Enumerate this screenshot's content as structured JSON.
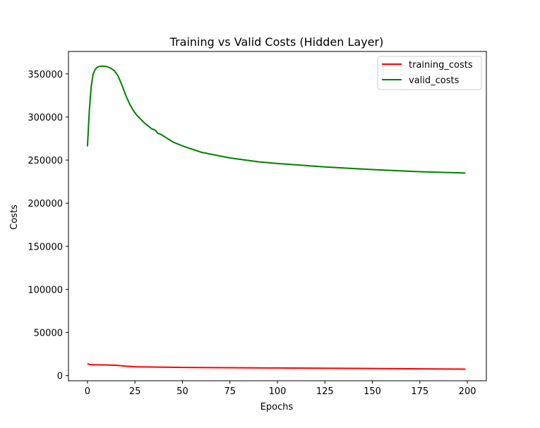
{
  "chart_data": {
    "type": "line",
    "title": "Training vs Valid Costs (Hidden Layer)",
    "xlabel": "Epochs",
    "ylabel": "Costs",
    "xlim": [
      -10,
      210
    ],
    "ylim": [
      -6000,
      376000
    ],
    "xticks": [
      0,
      25,
      50,
      75,
      100,
      125,
      150,
      175,
      200
    ],
    "yticks": [
      0,
      50000,
      100000,
      150000,
      200000,
      250000,
      300000,
      350000
    ],
    "grid": false,
    "legend_position": "top-right",
    "series": [
      {
        "name": "training_costs",
        "color": "#ff0000",
        "x": [
          0,
          1,
          2,
          5,
          10,
          15,
          20,
          25,
          30,
          40,
          50,
          75,
          100,
          125,
          150,
          175,
          199
        ],
        "y": [
          13800,
          13000,
          12600,
          12500,
          12300,
          12000,
          11000,
          10300,
          10000,
          9700,
          9500,
          9100,
          8800,
          8500,
          8200,
          7800,
          7500
        ]
      },
      {
        "name": "valid_costs",
        "color": "#008000",
        "x": [
          0,
          1,
          2,
          3,
          4,
          5,
          6,
          8,
          10,
          12,
          14,
          16,
          18,
          20,
          22,
          24,
          26,
          28,
          30,
          32,
          34,
          35,
          36,
          37,
          38,
          40,
          45,
          50,
          60,
          75,
          90,
          100,
          125,
          150,
          175,
          199
        ],
        "y": [
          266000,
          308000,
          336000,
          350000,
          355000,
          357500,
          358500,
          359000,
          358500,
          357000,
          354000,
          348000,
          338000,
          326000,
          316000,
          308000,
          302000,
          297500,
          293000,
          289500,
          286000,
          285500,
          284000,
          281000,
          280500,
          278000,
          271000,
          266500,
          259000,
          252500,
          248000,
          246000,
          242000,
          239000,
          236500,
          235000
        ]
      }
    ]
  }
}
